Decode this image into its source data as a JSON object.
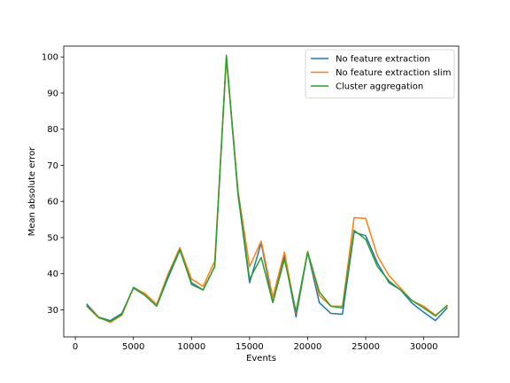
{
  "chart_data": {
    "type": "line",
    "xlabel": "Events",
    "ylabel": "Mean absolute error",
    "xlim": [
      -1000,
      33000
    ],
    "ylim": [
      22.5,
      103
    ],
    "xticks": [
      0,
      5000,
      10000,
      15000,
      20000,
      25000,
      30000
    ],
    "yticks": [
      30,
      40,
      50,
      60,
      70,
      80,
      90,
      100
    ],
    "legend_position": "top-right",
    "x": [
      1000,
      2000,
      3000,
      4000,
      5000,
      6000,
      7000,
      8000,
      9000,
      10000,
      11000,
      12000,
      13000,
      14000,
      15000,
      16000,
      17000,
      18000,
      19000,
      20000,
      21000,
      22000,
      23000,
      24000,
      25000,
      26000,
      27000,
      28000,
      29000,
      30000,
      31000,
      32000
    ],
    "series": [
      {
        "name": "No feature extraction",
        "color": "#1f77b4",
        "values": [
          31.5,
          28.0,
          27.0,
          29.0,
          36.0,
          34.0,
          31.0,
          39.0,
          46.5,
          37.5,
          35.5,
          42.0,
          100.0,
          62.0,
          37.5,
          48.5,
          32.0,
          45.0,
          28.0,
          46.0,
          32.0,
          29.0,
          28.8,
          51.5,
          50.5,
          43.0,
          37.5,
          35.5,
          31.8,
          29.3,
          27.0,
          30.5
        ]
      },
      {
        "name": "No feature extraction slim",
        "color": "#ff7f0e",
        "values": [
          31.0,
          28.0,
          26.5,
          28.5,
          36.2,
          34.5,
          31.5,
          40.0,
          47.2,
          38.5,
          36.5,
          43.5,
          99.5,
          63.0,
          42.0,
          49.0,
          33.5,
          46.0,
          29.0,
          46.2,
          34.0,
          31.0,
          31.0,
          55.5,
          55.3,
          45.0,
          39.5,
          36.0,
          32.5,
          31.0,
          28.5,
          31.0
        ]
      },
      {
        "name": "Cluster aggregation",
        "color": "#2ca02c",
        "values": [
          31.0,
          27.8,
          26.8,
          28.7,
          36.2,
          34.0,
          31.0,
          39.5,
          46.7,
          37.0,
          35.5,
          42.0,
          100.5,
          62.5,
          38.5,
          44.5,
          32.0,
          44.0,
          29.5,
          46.0,
          35.0,
          31.0,
          30.5,
          52.0,
          49.5,
          42.0,
          38.0,
          35.5,
          32.5,
          30.5,
          28.3,
          31.2
        ]
      }
    ]
  }
}
